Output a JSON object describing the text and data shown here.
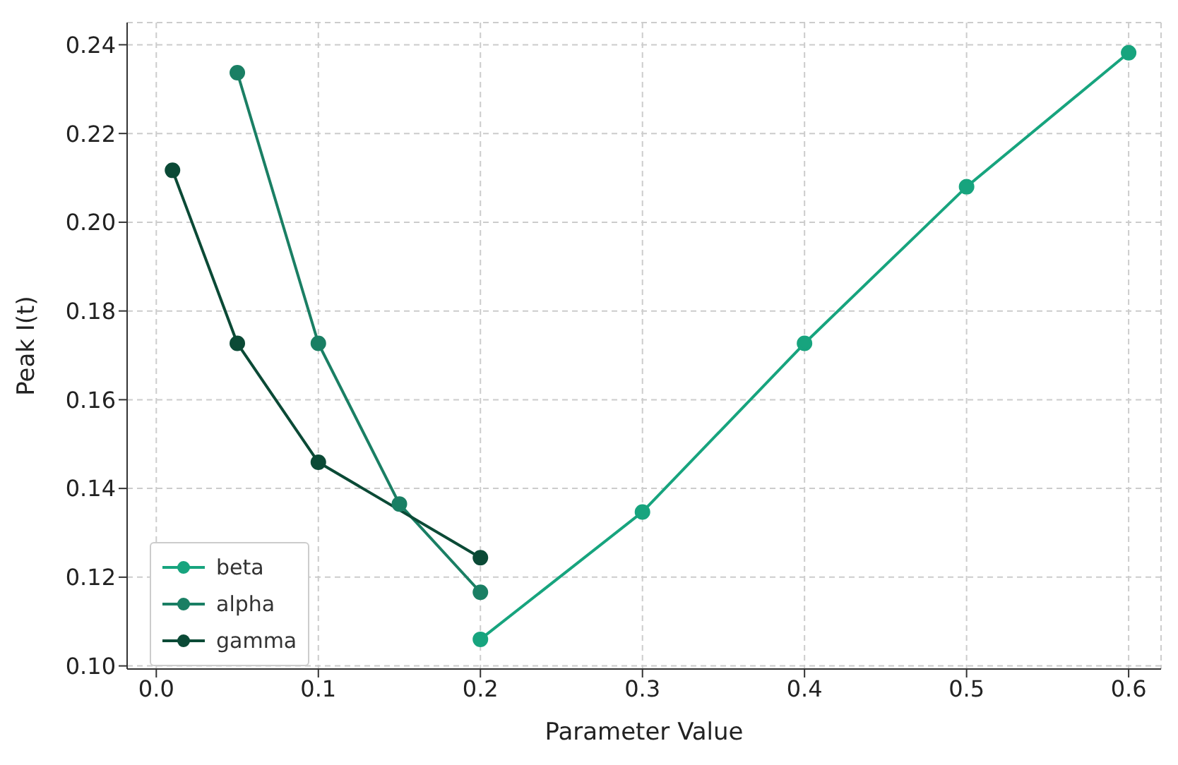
{
  "chart_data": {
    "type": "line",
    "xlabel": "Parameter Value",
    "ylabel": "Peak I(t)",
    "xlim": [
      -0.018,
      0.62
    ],
    "xticks": [
      {
        "value": 0,
        "label": "0.0"
      },
      0.1,
      0.2,
      0.3,
      0.4,
      0.5,
      0.6
    ],
    "ylim": [
      0.0993,
      0.245
    ],
    "yticks": [
      {
        "value": 0.1,
        "label": "0.10"
      },
      0.12,
      0.14,
      0.16,
      0.18,
      {
        "value": 0.2,
        "label": "0.20"
      },
      0.22,
      0.24
    ],
    "grid": true,
    "legend": "bottom left",
    "marker": "circle",
    "line_style": "solid",
    "series": [
      {
        "name": "beta",
        "color": "#17a47e",
        "x": [
          0.2,
          0.3,
          0.4,
          0.5,
          0.6
        ],
        "values": [
          0.106,
          0.1347,
          0.1727,
          0.208,
          0.2382
        ]
      },
      {
        "name": "alpha",
        "color": "#1a7f64",
        "x": [
          0.05,
          0.1,
          0.15,
          0.2
        ],
        "values": [
          0.2337,
          0.1727,
          0.1365,
          0.1166
        ]
      },
      {
        "name": "gamma",
        "color": "#0b4a36",
        "x": [
          0.01,
          0.05,
          0.1,
          0.2
        ],
        "values": [
          0.2117,
          0.1727,
          0.1459,
          0.1244
        ]
      }
    ]
  }
}
